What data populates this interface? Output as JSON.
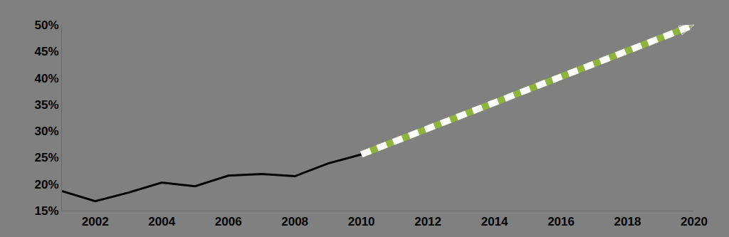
{
  "chart_data": {
    "type": "line",
    "grid": false,
    "xlim": [
      2001,
      2020
    ],
    "xticks": [
      2002,
      2004,
      2006,
      2008,
      2010,
      2012,
      2014,
      2016,
      2018,
      2020
    ],
    "ylim": [
      15,
      50
    ],
    "yticks": [
      {
        "value": 15,
        "label": "15%"
      },
      {
        "value": 20,
        "label": "20%"
      },
      {
        "value": 25,
        "label": "25%"
      },
      {
        "value": 30,
        "label": "30%"
      },
      {
        "value": 35,
        "label": "35%"
      },
      {
        "value": 40,
        "label": "40%"
      },
      {
        "value": 45,
        "label": "45%"
      },
      {
        "value": 50,
        "label": "50%"
      }
    ],
    "series": [
      {
        "color": "#000000",
        "line_style": "solid",
        "x": [
          2001,
          2002,
          2003,
          2004,
          2005,
          2006,
          2007,
          2008,
          2009,
          2010
        ],
        "values": [
          18.7,
          16.8,
          18.4,
          20.3,
          19.6,
          21.6,
          21.9,
          21.5,
          23.9,
          25.6
        ]
      },
      {
        "color": "#8db43c",
        "line_style": "dashed",
        "marker": "arrow",
        "x": [
          2010,
          2020
        ],
        "values": [
          25.6,
          50
        ]
      }
    ]
  }
}
